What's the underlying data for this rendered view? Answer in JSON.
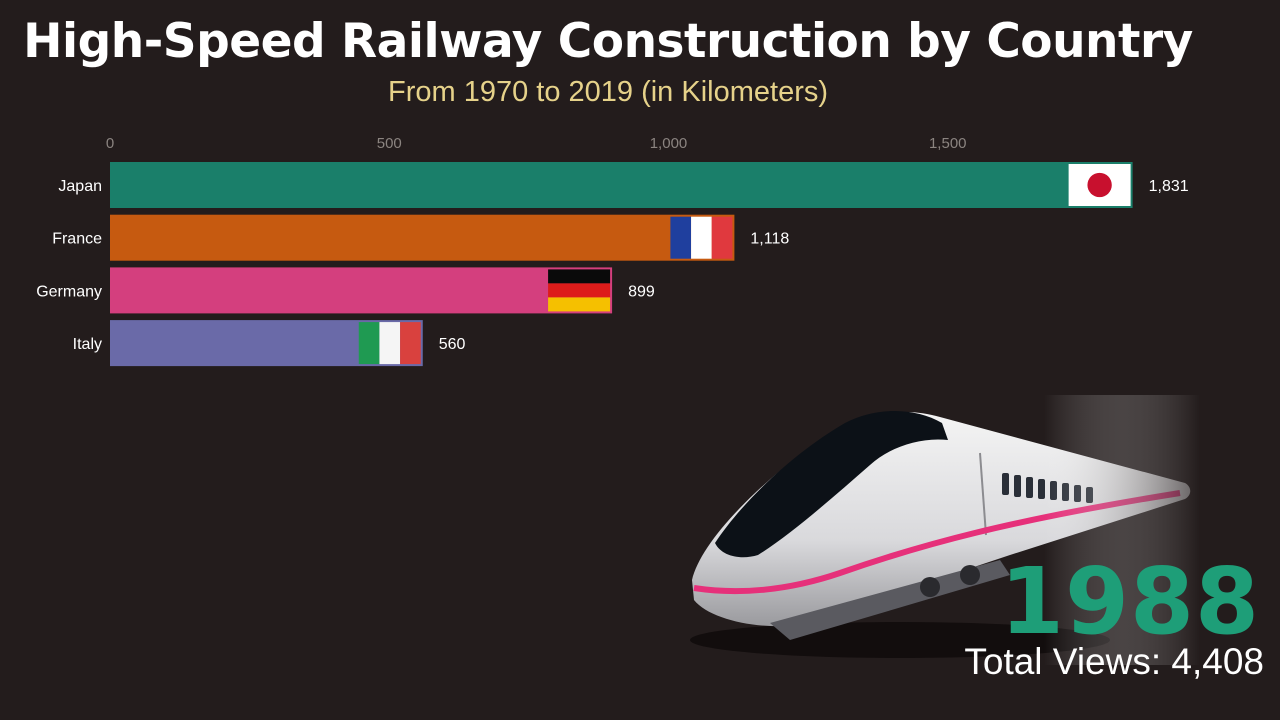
{
  "header": {
    "title": "High-Speed Railway Construction by Country",
    "subtitle": "From 1970 to 2019 (in Kilometers)"
  },
  "overlay": {
    "year": "1988",
    "views_label": "Total Views: 4,408"
  },
  "train_image": {
    "icon": "bullet-train-icon",
    "stripe_color": "#e6307a"
  },
  "chart_data": {
    "type": "bar",
    "orientation": "horizontal",
    "title": "High-Speed Railway Construction by Country",
    "subtitle": "From 1970 to 2019 (in Kilometers)",
    "xlim": [
      0,
      1831
    ],
    "ticks": [
      0,
      500,
      1000,
      1500
    ],
    "tick_labels": [
      "0",
      "500",
      "1,000",
      "1,500"
    ],
    "categories": [
      "Japan",
      "France",
      "Germany",
      "Italy"
    ],
    "values": [
      1831,
      1118,
      899,
      560
    ],
    "value_labels": [
      "1,831",
      "1,118",
      "899",
      "560"
    ],
    "colors": [
      "#1a7f6a",
      "#c65a10",
      "#d43f7e",
      "#6a6aa8"
    ],
    "flags": [
      "japan-flag",
      "france-flag",
      "germany-flag",
      "italy-flag"
    ],
    "grid": false,
    "legend": "none"
  }
}
